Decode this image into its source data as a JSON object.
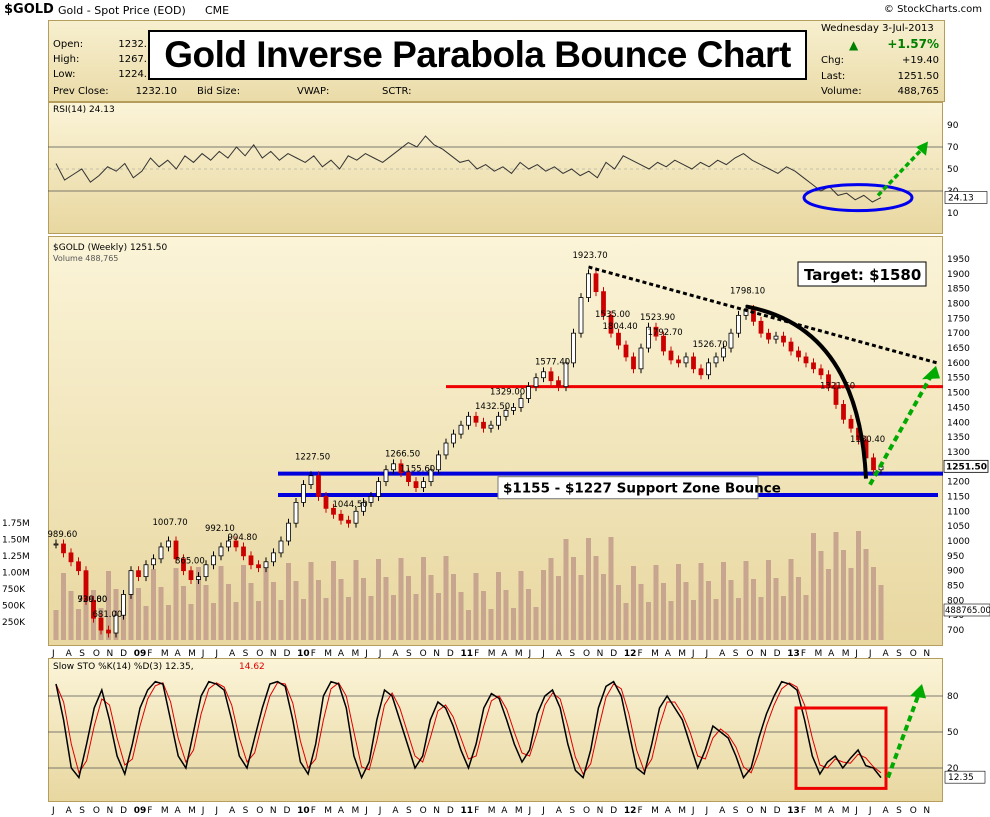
{
  "header": {
    "symbol": "$GOLD",
    "description": "Gold - Spot Price (EOD)",
    "exchange": "CME",
    "credit": "© StockCharts.com"
  },
  "quote": {
    "open_label": "Open:",
    "open": "1232.",
    "high_label": "High:",
    "high": "1267.",
    "low_label": "Low:",
    "low": "1224.",
    "prev_label": "Prev Close:",
    "prev": "1232.10",
    "bid_label": "Bid Size:",
    "vwap_label": "VWAP:",
    "sctr_label": "SCTR:",
    "date": "Wednesday   3-Jul-2013",
    "pct_change": "+1.57%",
    "chg_label": "Chg:",
    "chg": "+19.40",
    "last_label": "Last:",
    "last": "1251.50",
    "volume_label": "Volume:",
    "volume": "488,765"
  },
  "title": "Gold Inverse Parabola Bounce Chart",
  "colors": {
    "panel_top": "#fbf4d8",
    "panel_bottom": "#e8d7a0",
    "up": "#000000",
    "down": "#cc0000",
    "volume": "#c7a58f",
    "support": "#0000dd",
    "resistance": "#ee0000",
    "arrow": "#00aa00"
  },
  "chart_data": [
    {
      "type": "line",
      "name_label": "RSI(14) 24.13",
      "ylim": [
        0,
        100
      ],
      "ticks": [
        90,
        70,
        50,
        30,
        10
      ],
      "guide_lines": [
        70,
        30
      ],
      "last_value": "24.13",
      "points": [
        55,
        40,
        45,
        50,
        38,
        44,
        52,
        48,
        55,
        42,
        48,
        60,
        52,
        58,
        50,
        62,
        56,
        64,
        58,
        66,
        60,
        70,
        62,
        72,
        60,
        66,
        58,
        64,
        60,
        56,
        62,
        52,
        58,
        50,
        62,
        58,
        64,
        60,
        56,
        62,
        68,
        74,
        70,
        80,
        72,
        68,
        62,
        56,
        58,
        50,
        54,
        48,
        52,
        46,
        56,
        50,
        54,
        48,
        52,
        46,
        50,
        44,
        48,
        42,
        56,
        50,
        62,
        58,
        54,
        50,
        56,
        52,
        58,
        54,
        50,
        56,
        52,
        58,
        54,
        60,
        64,
        58,
        54,
        50,
        46,
        52,
        48,
        42,
        36,
        30,
        34,
        26,
        28,
        22,
        26,
        20,
        24
      ]
    },
    {
      "type": "candlestick",
      "series_label": "$GOLD (Weekly) 1251.50",
      "volume_label": "Volume 488,765",
      "ylim": [
        680,
        1960
      ],
      "price_ticks": [
        1950,
        1900,
        1850,
        1800,
        1750,
        1700,
        1650,
        1600,
        1550,
        1500,
        1450,
        1400,
        1350,
        1300,
        1250,
        1200,
        1150,
        1100,
        1050,
        1000,
        950,
        900,
        850,
        800,
        750,
        700
      ],
      "volume_ticks": [
        "1.75M",
        "1.50M",
        "1.25M",
        "1.00M",
        "750K",
        "500K",
        "250K"
      ],
      "last_price": "1251.50",
      "last_volume": "488765.00",
      "closes": [
        990,
        960,
        930,
        900,
        800,
        740,
        700,
        690,
        750,
        820,
        900,
        880,
        920,
        940,
        980,
        1000,
        940,
        900,
        870,
        880,
        920,
        950,
        980,
        1000,
        980,
        950,
        920,
        910,
        930,
        960,
        1000,
        1060,
        1130,
        1190,
        1220,
        1150,
        1110,
        1090,
        1070,
        1060,
        1100,
        1130,
        1150,
        1200,
        1240,
        1260,
        1230,
        1200,
        1180,
        1200,
        1240,
        1290,
        1330,
        1360,
        1390,
        1420,
        1400,
        1380,
        1390,
        1420,
        1440,
        1450,
        1480,
        1520,
        1550,
        1570,
        1540,
        1520,
        1600,
        1700,
        1820,
        1900,
        1840,
        1760,
        1700,
        1660,
        1620,
        1580,
        1650,
        1720,
        1690,
        1640,
        1610,
        1600,
        1620,
        1580,
        1560,
        1600,
        1620,
        1650,
        1700,
        1760,
        1780,
        1740,
        1700,
        1680,
        1690,
        1670,
        1640,
        1620,
        1600,
        1580,
        1560,
        1520,
        1460,
        1410,
        1380,
        1340,
        1280,
        1240,
        1252
      ],
      "labels": [
        {
          "text": "989.60",
          "i": 1
        },
        {
          "text": "926.00",
          "i": 5
        },
        {
          "text": "739.80",
          "i": 5
        },
        {
          "text": "681.00",
          "i": 7
        },
        {
          "text": "1007.70",
          "i": 15
        },
        {
          "text": "865.00",
          "i": 18
        },
        {
          "text": "992.10",
          "i": 22
        },
        {
          "text": "904.80",
          "i": 25
        },
        {
          "text": "1227.50",
          "i": 34
        },
        {
          "text": "1044.50",
          "i": 39
        },
        {
          "text": "1266.50",
          "i": 46
        },
        {
          "text": "1155.60",
          "i": 48
        },
        {
          "text": "1432.50",
          "i": 58
        },
        {
          "text": "1329.00",
          "i": 60
        },
        {
          "text": "1577.40",
          "i": 66
        },
        {
          "text": "1923.70",
          "i": 71
        },
        {
          "text": "1804.40",
          "i": 75
        },
        {
          "text": "1535.00",
          "i": 74
        },
        {
          "text": "1792.70",
          "i": 81
        },
        {
          "text": "1523.90",
          "i": 80
        },
        {
          "text": "1526.70",
          "i": 87
        },
        {
          "text": "1798.10",
          "i": 92
        },
        {
          "text": "1321.50",
          "i": 104
        },
        {
          "text": "1180.40",
          "i": 108
        }
      ],
      "annotations": {
        "target": "Target: $1580",
        "support_zone": "$1155 - $1227 Support Zone Bounce"
      },
      "levels": {
        "support_top": 1227,
        "support_bottom": 1155,
        "resistance": 1520
      }
    },
    {
      "type": "line",
      "name_label": "Slow STO %K(14) %D(3) 12.35,",
      "name_value2": "14.62",
      "ylim": [
        0,
        100
      ],
      "ticks": [
        80,
        50,
        20
      ],
      "guide_lines": [
        80,
        50,
        20
      ],
      "last_value": "12.35",
      "k": [
        90,
        60,
        20,
        12,
        40,
        70,
        85,
        60,
        30,
        15,
        40,
        70,
        85,
        92,
        90,
        60,
        30,
        20,
        50,
        80,
        92,
        90,
        85,
        60,
        30,
        20,
        45,
        70,
        90,
        92,
        88,
        60,
        25,
        15,
        40,
        80,
        92,
        90,
        70,
        30,
        12,
        25,
        60,
        85,
        80,
        60,
        40,
        20,
        30,
        60,
        75,
        70,
        55,
        35,
        20,
        40,
        70,
        82,
        78,
        60,
        40,
        25,
        35,
        65,
        80,
        85,
        70,
        40,
        18,
        12,
        35,
        70,
        88,
        92,
        80,
        50,
        20,
        15,
        40,
        70,
        80,
        70,
        60,
        40,
        20,
        35,
        55,
        50,
        45,
        30,
        12,
        20,
        45,
        65,
        80,
        92,
        90,
        85,
        60,
        30,
        15,
        25,
        30,
        20,
        28,
        35,
        22,
        20,
        12
      ]
    },
    {
      "type": "axis",
      "x_labels": [
        "J",
        "A",
        "S",
        "O",
        "N",
        "D",
        "09",
        "F",
        "M",
        "A",
        "M",
        "J",
        "J",
        "A",
        "S",
        "O",
        "N",
        "D",
        "10",
        "F",
        "M",
        "A",
        "M",
        "J",
        "J",
        "A",
        "S",
        "O",
        "N",
        "D",
        "11",
        "F",
        "M",
        "A",
        "M",
        "J",
        "J",
        "A",
        "S",
        "O",
        "N",
        "D",
        "12",
        "F",
        "M",
        "A",
        "M",
        "J",
        "J",
        "A",
        "S",
        "O",
        "N",
        "D",
        "13",
        "F",
        "M",
        "A",
        "M",
        "J",
        "J",
        "A",
        "S",
        "O",
        "N"
      ]
    }
  ]
}
